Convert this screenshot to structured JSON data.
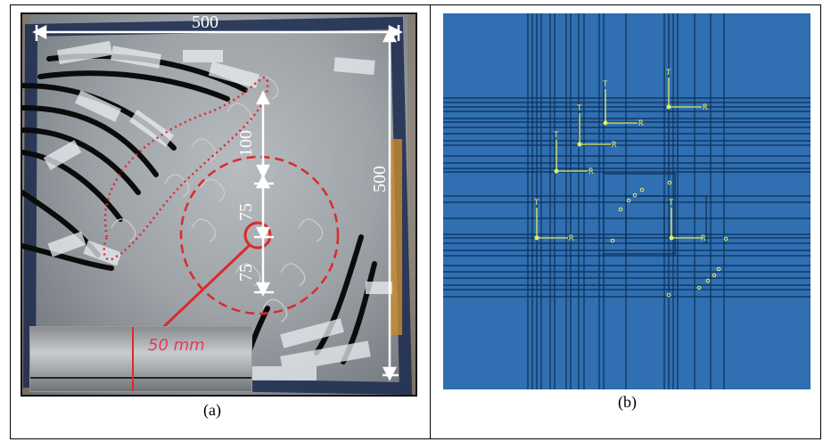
{
  "left_panel": {
    "dimensions": {
      "width_top": "500",
      "height_right": "500",
      "spacing_upper": "100",
      "spacing_mid": "75",
      "spacing_lower": "75"
    },
    "inset_note": "50 mm",
    "caption": "(a)"
  },
  "right_panel": {
    "axis_labels": {
      "t": "T",
      "r": "R"
    },
    "caption": "(b)"
  },
  "colors": {
    "frame": "#000000",
    "model_blue": "#2f6fb2",
    "mesh_line": "#0d2f56",
    "sensor_yellow": "#e8f06a",
    "annotation_red": "#d92b2b",
    "annotation_white": "#ffffff"
  }
}
